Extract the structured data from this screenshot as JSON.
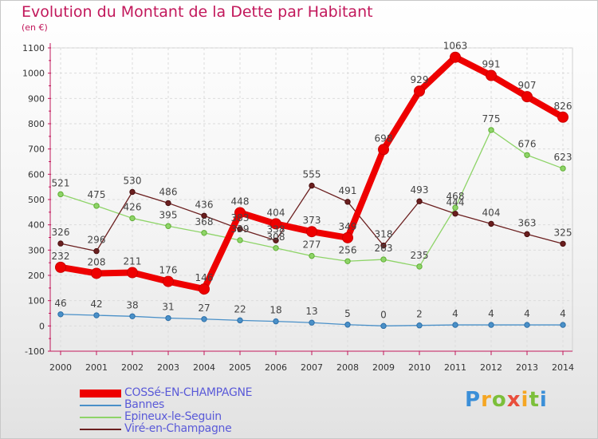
{
  "title": "Evolution du Montant de la Dette par Habitant",
  "unit_label": "(en €)",
  "logo_text": "Proxiti",
  "chart_data": {
    "type": "line",
    "title": "Evolution du Montant de la Dette par Habitant",
    "ylabel": "(en €)",
    "xlabel": "",
    "x": [
      2000,
      2001,
      2002,
      2003,
      2004,
      2005,
      2006,
      2007,
      2008,
      2009,
      2010,
      2011,
      2012,
      2013,
      2014
    ],
    "x_tick_labels": [
      "2000",
      "2001",
      "2002",
      "2003",
      "2004",
      "2005",
      "2006",
      "2007",
      "2008",
      "2009",
      "2010",
      "2011",
      "2012",
      "2013",
      "2014"
    ],
    "ylim": [
      -100,
      1100
    ],
    "y_ticks": [
      -100,
      0,
      100,
      200,
      300,
      400,
      500,
      600,
      700,
      800,
      900,
      1000,
      1100
    ],
    "y_tick_labels": [
      "-100",
      "0",
      "100",
      "200",
      "300",
      "400",
      "500",
      "600",
      "700",
      "800",
      "900",
      "1000",
      "1100"
    ],
    "grid": true,
    "legend_position": "bottom-left",
    "series": [
      {
        "name": "COSSé-EN-CHAMPAGNE",
        "color": "#ee0000",
        "values": [
          232,
          208,
          211,
          176,
          146,
          448,
          404,
          373,
          349,
          698,
          929,
          1063,
          991,
          907,
          826
        ],
        "labels": [
          "232",
          "208",
          "211",
          "176",
          "146",
          "448",
          "404",
          "373",
          "349",
          "698",
          "929",
          "1063",
          "991",
          "907",
          "826"
        ]
      },
      {
        "name": "Bannes",
        "color": "#4a90c8",
        "values": [
          46,
          42,
          38,
          31,
          27,
          22,
          18,
          13,
          5,
          0,
          2,
          4,
          4,
          4,
          4
        ],
        "labels": [
          "46",
          "42",
          "38",
          "31",
          "27",
          "22",
          "18",
          "13",
          "5",
          "0",
          "2",
          "4",
          "4",
          "4",
          "4"
        ]
      },
      {
        "name": "Epineux-le-Seguin",
        "color": "#8ed468",
        "values": [
          521,
          475,
          426,
          395,
          368,
          339,
          308,
          277,
          256,
          263,
          235,
          468,
          775,
          676,
          623
        ],
        "labels": [
          "521",
          "475",
          "426",
          "395",
          "368",
          "339",
          "308",
          "277",
          "256",
          "263",
          "235",
          "468",
          "775",
          "676",
          "623"
        ]
      },
      {
        "name": "Viré-en-Champagne",
        "color": "#6b1f1f",
        "values": [
          326,
          296,
          530,
          486,
          436,
          383,
          338,
          555,
          491,
          318,
          493,
          444,
          404,
          363,
          325
        ],
        "labels": [
          "326",
          "296",
          "530",
          "486",
          "436",
          "383",
          "338",
          "555",
          "491",
          "318",
          "493",
          "444",
          "404",
          "363",
          "325"
        ]
      }
    ]
  }
}
